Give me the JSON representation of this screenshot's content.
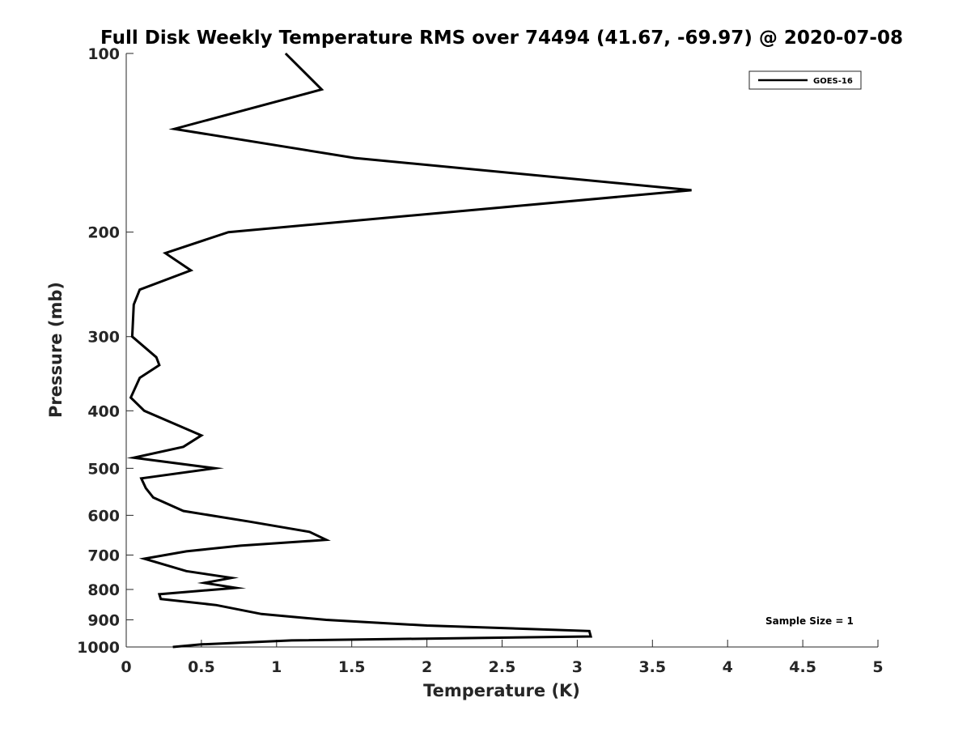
{
  "chart_data": {
    "type": "line",
    "title": "Full Disk Weekly Temperature RMS over 74494 (41.67, -69.97) @ 2020-07-08",
    "xlabel": "Temperature (K)",
    "ylabel": "Pressure (mb)",
    "xlim": [
      0,
      5
    ],
    "ylim": [
      100,
      1000
    ],
    "yscale": "log",
    "y_reversed": true,
    "grid": false,
    "legend_position": "top-right",
    "x_ticks": [
      0,
      0.5,
      1,
      1.5,
      2,
      2.5,
      3,
      3.5,
      4,
      4.5,
      5
    ],
    "x_tick_labels": [
      "0",
      "0.5",
      "1",
      "1.5",
      "2",
      "2.5",
      "3",
      "3.5",
      "4",
      "4.5",
      "5"
    ],
    "y_ticks": [
      100,
      200,
      300,
      400,
      500,
      600,
      700,
      800,
      900,
      1000
    ],
    "y_tick_labels": [
      "100",
      "200",
      "300",
      "400",
      "500",
      "600",
      "700",
      "800",
      "900",
      "1000"
    ],
    "annotation": "Sample Size = 1",
    "line_color": "#000000",
    "series": [
      {
        "name": "GOES-16",
        "x": [
          1.06,
          1.3,
          0.32,
          1.52,
          3.76,
          0.68,
          0.26,
          0.43,
          0.09,
          0.05,
          0.04,
          0.2,
          0.22,
          0.09,
          0.03,
          0.12,
          0.5,
          0.38,
          0.05,
          0.59,
          0.1,
          0.13,
          0.18,
          0.38,
          0.82,
          1.22,
          1.33,
          0.76,
          0.4,
          0.12,
          0.4,
          0.7,
          0.52,
          0.73,
          0.22,
          0.23,
          0.6,
          0.9,
          1.33,
          2.0,
          3.08,
          3.09,
          1.1,
          0.5,
          0.31
        ],
        "y": [
          100,
          115,
          134,
          150,
          170,
          200,
          217,
          232,
          250,
          265,
          300,
          325,
          335,
          352,
          380,
          400,
          440,
          460,
          480,
          500,
          520,
          540,
          560,
          590,
          615,
          640,
          660,
          675,
          690,
          710,
          745,
          765,
          780,
          795,
          815,
          830,
          850,
          880,
          900,
          920,
          940,
          960,
          975,
          990,
          1000
        ]
      }
    ]
  }
}
